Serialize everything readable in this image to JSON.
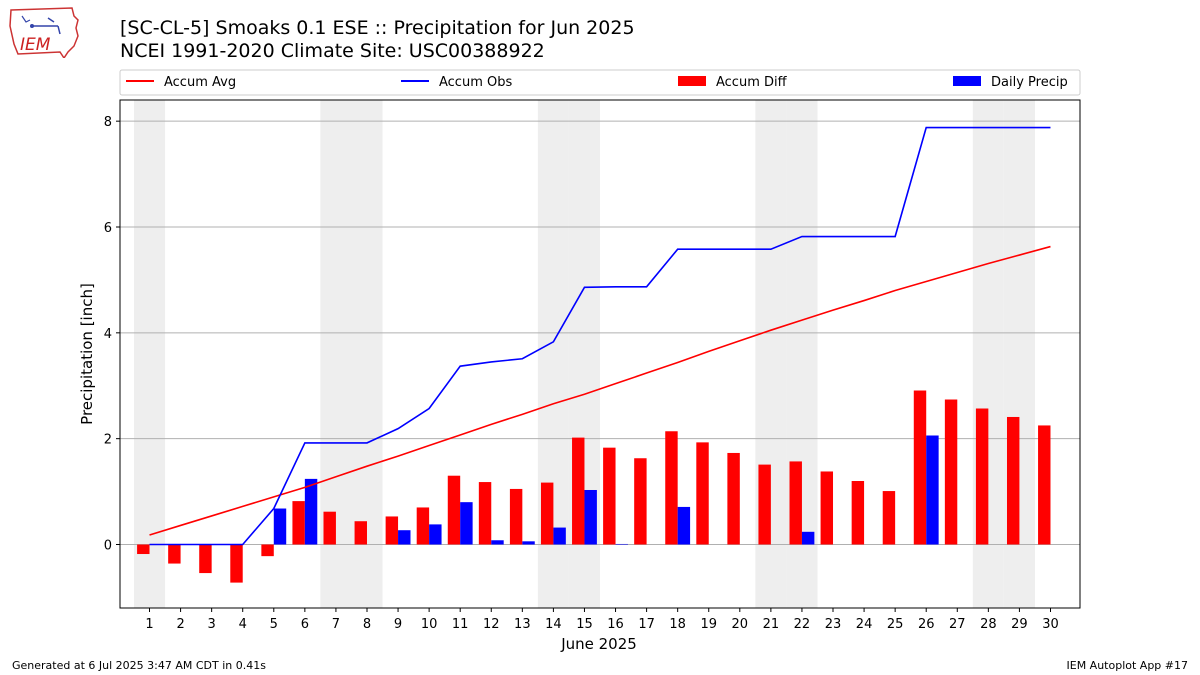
{
  "header": {
    "title_line1": "[SC-CL-5] Smoaks 0.1 ESE :: Precipitation for Jun 2025",
    "title_line2": "NCEI 1991-2020 Climate Site: USC00388922",
    "logo_text": "IEM"
  },
  "footer": {
    "left": "Generated at 6 Jul 2025 3:47 AM CDT in 0.41s",
    "right": "IEM Autoplot App #17"
  },
  "colors": {
    "accum_avg": "#ff0000",
    "accum_obs": "#0000ff",
    "accum_diff": "#ff0000",
    "daily_precip": "#0000ff",
    "weekend_shade": "#eeeeee"
  },
  "chart_data": {
    "type": "bar",
    "xlabel": "June 2025",
    "ylabel": "Precipitation [inch]",
    "ylim": [
      -1.2,
      8.4
    ],
    "yticks": [
      0,
      2,
      4,
      6,
      8
    ],
    "grid": "horizontal",
    "legend_placement": "top, above plot",
    "categories": [
      "1",
      "2",
      "3",
      "4",
      "5",
      "6",
      "7",
      "8",
      "9",
      "10",
      "11",
      "12",
      "13",
      "14",
      "15",
      "16",
      "17",
      "18",
      "19",
      "20",
      "21",
      "22",
      "23",
      "24",
      "25",
      "26",
      "27",
      "28",
      "29",
      "30"
    ],
    "weekend_days": [
      1,
      7,
      8,
      14,
      15,
      21,
      22,
      28,
      29
    ],
    "series": [
      {
        "name": "Accum Avg",
        "kind": "line",
        "values": [
          0.18,
          0.36,
          0.54,
          0.72,
          0.9,
          1.08,
          1.28,
          1.48,
          1.67,
          1.87,
          2.07,
          2.27,
          2.46,
          2.66,
          2.84,
          3.04,
          3.24,
          3.44,
          3.65,
          3.85,
          4.05,
          4.24,
          4.43,
          4.61,
          4.8,
          4.97,
          5.14,
          5.31,
          5.47,
          5.63
        ]
      },
      {
        "name": "Accum Obs",
        "kind": "line",
        "values": [
          0.0,
          0.0,
          0.0,
          0.0,
          0.68,
          1.92,
          1.92,
          1.92,
          2.19,
          2.57,
          3.37,
          3.45,
          3.51,
          3.83,
          4.86,
          4.87,
          4.87,
          5.58,
          5.58,
          5.58,
          5.58,
          5.82,
          5.82,
          5.82,
          5.82,
          7.88,
          7.88,
          7.88,
          7.88,
          7.88
        ]
      },
      {
        "name": "Accum Diff",
        "kind": "bar",
        "values": [
          -0.18,
          -0.36,
          -0.54,
          -0.72,
          -0.22,
          0.82,
          0.62,
          0.44,
          0.53,
          0.7,
          1.3,
          1.18,
          1.05,
          1.17,
          2.02,
          1.83,
          1.63,
          2.14,
          1.93,
          1.73,
          1.51,
          1.57,
          1.38,
          1.2,
          1.01,
          2.91,
          2.74,
          2.57,
          2.41,
          2.25
        ]
      },
      {
        "name": "Daily Precip",
        "kind": "bar",
        "values": [
          0,
          0,
          0,
          0,
          0.68,
          1.24,
          0,
          0,
          0.27,
          0.38,
          0.8,
          0.08,
          0.06,
          0.32,
          1.03,
          0.01,
          0,
          0.71,
          0,
          0,
          0,
          0.24,
          0,
          0,
          0,
          2.06,
          0,
          0,
          0,
          0
        ]
      }
    ]
  }
}
